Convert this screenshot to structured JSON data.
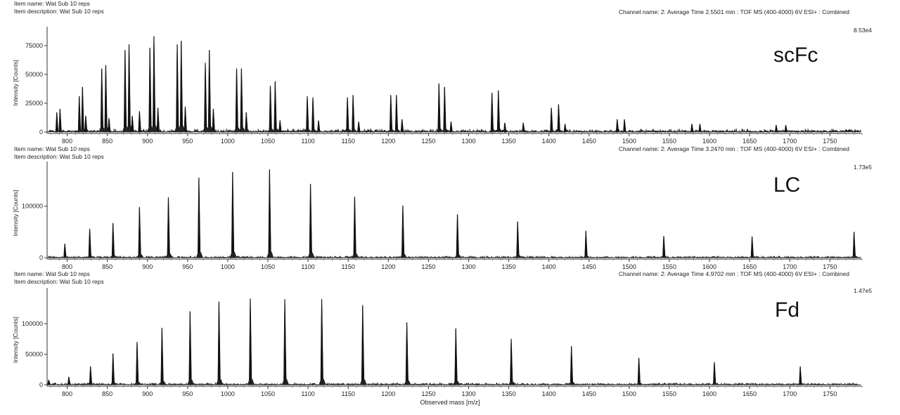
{
  "chart_data": [
    {
      "type": "line",
      "item_name": "Item name:  Wat Sub 10 reps",
      "item_description": "Item description:  Wat Sub 10 reps",
      "channel": "Channel name: 2: Average Time 2.5501 min : TOF MS (400-4000) 6V ESI+ : Combined",
      "scale": "8.53e4",
      "label": "scFc",
      "ylabel": "Intensity [Counts]",
      "xlim": [
        775,
        1790
      ],
      "ylim": [
        0,
        85300
      ],
      "x_ticks": [
        800,
        850,
        900,
        950,
        1000,
        1050,
        1100,
        1150,
        1200,
        1250,
        1300,
        1350,
        1400,
        1450,
        1500,
        1550,
        1600,
        1650,
        1700,
        1750
      ],
      "y_ticks": [
        0,
        25000,
        50000,
        75000
      ],
      "noise_level": 2500,
      "peaks": [
        {
          "x": 787,
          "y": 17000
        },
        {
          "x": 791,
          "y": 20000
        },
        {
          "x": 815,
          "y": 31000
        },
        {
          "x": 819,
          "y": 39000
        },
        {
          "x": 823,
          "y": 14000
        },
        {
          "x": 843,
          "y": 55000
        },
        {
          "x": 848,
          "y": 58000
        },
        {
          "x": 852,
          "y": 12000
        },
        {
          "x": 872,
          "y": 71000
        },
        {
          "x": 877,
          "y": 76000
        },
        {
          "x": 881,
          "y": 14000
        },
        {
          "x": 890,
          "y": 18000
        },
        {
          "x": 903,
          "y": 73000
        },
        {
          "x": 908,
          "y": 83000
        },
        {
          "x": 913,
          "y": 21000
        },
        {
          "x": 937,
          "y": 76000
        },
        {
          "x": 942,
          "y": 79000
        },
        {
          "x": 947,
          "y": 22000
        },
        {
          "x": 972,
          "y": 60000
        },
        {
          "x": 977,
          "y": 71000
        },
        {
          "x": 982,
          "y": 20000
        },
        {
          "x": 1011,
          "y": 55000
        },
        {
          "x": 1017,
          "y": 55000
        },
        {
          "x": 1023,
          "y": 17000
        },
        {
          "x": 1053,
          "y": 40000
        },
        {
          "x": 1059,
          "y": 44000
        },
        {
          "x": 1065,
          "y": 10000
        },
        {
          "x": 1099,
          "y": 31000
        },
        {
          "x": 1106,
          "y": 30000
        },
        {
          "x": 1113,
          "y": 10000
        },
        {
          "x": 1149,
          "y": 30000
        },
        {
          "x": 1156,
          "y": 32000
        },
        {
          "x": 1163,
          "y": 9000
        },
        {
          "x": 1203,
          "y": 32000
        },
        {
          "x": 1210,
          "y": 32000
        },
        {
          "x": 1217,
          "y": 11000
        },
        {
          "x": 1263,
          "y": 42000
        },
        {
          "x": 1270,
          "y": 39000
        },
        {
          "x": 1278,
          "y": 9000
        },
        {
          "x": 1329,
          "y": 34000
        },
        {
          "x": 1337,
          "y": 36000
        },
        {
          "x": 1345,
          "y": 8000
        },
        {
          "x": 1368,
          "y": 8000
        },
        {
          "x": 1403,
          "y": 21000
        },
        {
          "x": 1412,
          "y": 24000
        },
        {
          "x": 1420,
          "y": 7000
        },
        {
          "x": 1485,
          "y": 11000
        },
        {
          "x": 1494,
          "y": 11000
        },
        {
          "x": 1578,
          "y": 7000
        },
        {
          "x": 1588,
          "y": 7000
        },
        {
          "x": 1683,
          "y": 6000
        },
        {
          "x": 1695,
          "y": 6000
        }
      ]
    },
    {
      "type": "line",
      "item_name": "Item name:  Wat Sub 10 reps",
      "item_description": "Item description:  Wat Sub 10 reps",
      "channel": "Channel name: 2: Average Time 3.2470 min : TOF MS (400-4000) 6V ESI+ : Combined",
      "scale": "1.73e5",
      "label": "LC",
      "ylabel": "Intensity [Counts]",
      "xlim": [
        775,
        1790
      ],
      "ylim": [
        0,
        173000
      ],
      "x_ticks": [
        800,
        850,
        900,
        950,
        1000,
        1050,
        1100,
        1150,
        1200,
        1250,
        1300,
        1350,
        1400,
        1450,
        1500,
        1550,
        1600,
        1650,
        1700,
        1750
      ],
      "y_ticks": [
        0,
        100000
      ],
      "noise_level": 3000,
      "peaks": [
        {
          "x": 797,
          "y": 27000
        },
        {
          "x": 828,
          "y": 56000
        },
        {
          "x": 857,
          "y": 67000
        },
        {
          "x": 890,
          "y": 98000
        },
        {
          "x": 926,
          "y": 117000
        },
        {
          "x": 964,
          "y": 155000
        },
        {
          "x": 1006,
          "y": 166000
        },
        {
          "x": 1052,
          "y": 171000
        },
        {
          "x": 1103,
          "y": 143000
        },
        {
          "x": 1158,
          "y": 118000
        },
        {
          "x": 1218,
          "y": 101000
        },
        {
          "x": 1286,
          "y": 84000
        },
        {
          "x": 1361,
          "y": 70000
        },
        {
          "x": 1446,
          "y": 52000
        },
        {
          "x": 1543,
          "y": 42000
        },
        {
          "x": 1653,
          "y": 41000
        },
        {
          "x": 1780,
          "y": 50000
        }
      ]
    },
    {
      "type": "line",
      "item_name": "Item name:  Wat Sub 10 reps",
      "item_description": "Item description:  Wat Sub 10 reps",
      "channel": "Channel name: 2: Average Time 4.9702 min : TOF MS (400-4000) 6V ESI+ : Combined",
      "scale": "1.47e5",
      "label": "Fd",
      "ylabel": "Intensity [Counts]",
      "xlabel": "Observed mass [m/z]",
      "xlim": [
        775,
        1790
      ],
      "ylim": [
        0,
        147000
      ],
      "x_ticks": [
        800,
        850,
        900,
        950,
        1000,
        1050,
        1100,
        1150,
        1200,
        1250,
        1300,
        1350,
        1400,
        1450,
        1500,
        1550,
        1600,
        1650,
        1700,
        1750
      ],
      "y_ticks": [
        0,
        50000,
        100000
      ],
      "noise_level": 3000,
      "peaks": [
        {
          "x": 777,
          "y": 8000
        },
        {
          "x": 802,
          "y": 13000
        },
        {
          "x": 829,
          "y": 30000
        },
        {
          "x": 857,
          "y": 51000
        },
        {
          "x": 887,
          "y": 70000
        },
        {
          "x": 918,
          "y": 93000
        },
        {
          "x": 953,
          "y": 120000
        },
        {
          "x": 989,
          "y": 136000
        },
        {
          "x": 1028,
          "y": 141000
        },
        {
          "x": 1071,
          "y": 140000
        },
        {
          "x": 1117,
          "y": 140000
        },
        {
          "x": 1168,
          "y": 130000
        },
        {
          "x": 1223,
          "y": 102000
        },
        {
          "x": 1284,
          "y": 92000
        },
        {
          "x": 1353,
          "y": 75000
        },
        {
          "x": 1428,
          "y": 63000
        },
        {
          "x": 1512,
          "y": 44000
        },
        {
          "x": 1606,
          "y": 37000
        },
        {
          "x": 1713,
          "y": 30000
        }
      ]
    }
  ]
}
